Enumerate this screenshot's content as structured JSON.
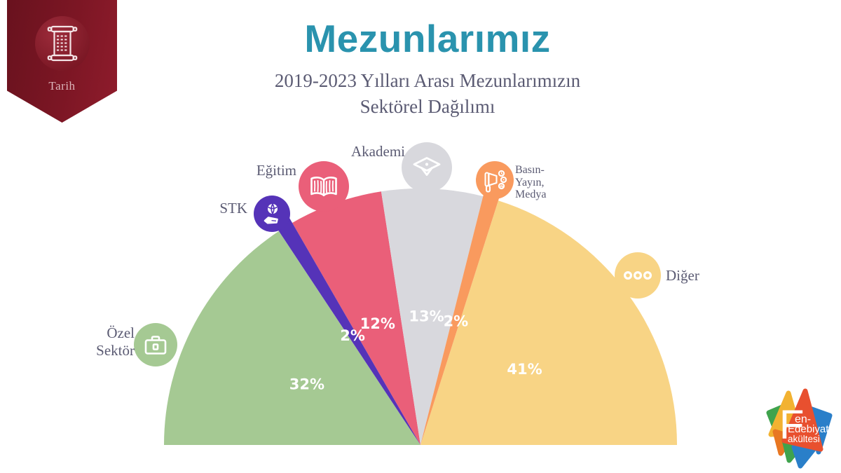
{
  "banner": {
    "label": "Tarih",
    "icon": "scroll-icon",
    "bg_color_left": "#69121e",
    "bg_color_right": "#8f1c2c"
  },
  "header": {
    "title": "Mezunlarımız",
    "title_color": "#2a93ae",
    "subtitle_line1": "2019-2023 Yılları Arası Mezunlarımızın",
    "subtitle_line2": "Sektörel Dağılımı",
    "subtitle_color": "#5b5b73"
  },
  "chart_data": {
    "type": "pie",
    "variant": "semicircle",
    "title": "2019-2023 Yılları Arası Mezunlarımızın Sektörel Dağılımı",
    "unit": "percent",
    "start_angle_deg": 180,
    "end_angle_deg": 0,
    "legend_position": "around-arc",
    "segments": [
      {
        "name": "ozel-sektor",
        "label": "Özel Sektör",
        "value": 32,
        "display": "32%",
        "color": "#a5c993",
        "icon": "briefcase-icon"
      },
      {
        "name": "stk",
        "label": "STK",
        "value": 2,
        "display": "2%",
        "color": "#5533b8",
        "icon": "hand-globe-icon",
        "extended": true
      },
      {
        "name": "egitim",
        "label": "Eğitim",
        "value": 12,
        "display": "12%",
        "color": "#ea5f79",
        "icon": "open-book-icon"
      },
      {
        "name": "akademi",
        "label": "Akademi",
        "value": 13,
        "display": "13%",
        "color": "#d8d8dd",
        "icon": "graduation-cap-icon"
      },
      {
        "name": "basin-yayin-medya",
        "label": "Basın-Yayın, Medya",
        "value": 2,
        "display": "2%",
        "color": "#f99a5e",
        "icon": "megaphone-icon",
        "extended": true
      },
      {
        "name": "diger",
        "label": "Diğer",
        "value": 41,
        "display": "41%",
        "color": "#f8d485",
        "icon": "ellipsis-icon"
      }
    ]
  },
  "callouts": {
    "ozel_sektor": {
      "lines": [
        "Özel",
        "Sektör"
      ]
    },
    "stk": {
      "lines": [
        "STK"
      ]
    },
    "egitim": {
      "lines": [
        "Eğitim"
      ]
    },
    "akademi": {
      "lines": [
        "Akademi"
      ]
    },
    "basin": {
      "lines": [
        "Basın-",
        "Yayın,",
        "Medya"
      ]
    },
    "diger": {
      "lines": [
        "Diğer"
      ]
    }
  },
  "logo": {
    "text_f": "F",
    "text_en": "en-",
    "text_edebiyat": "Edebiyat",
    "text_fakultesi": "akültesi",
    "colors": {
      "yellow": "#f2b231",
      "red": "#e8502f",
      "green": "#3fa34d",
      "blue": "#2a7fc9",
      "orange": "#e87722"
    }
  }
}
